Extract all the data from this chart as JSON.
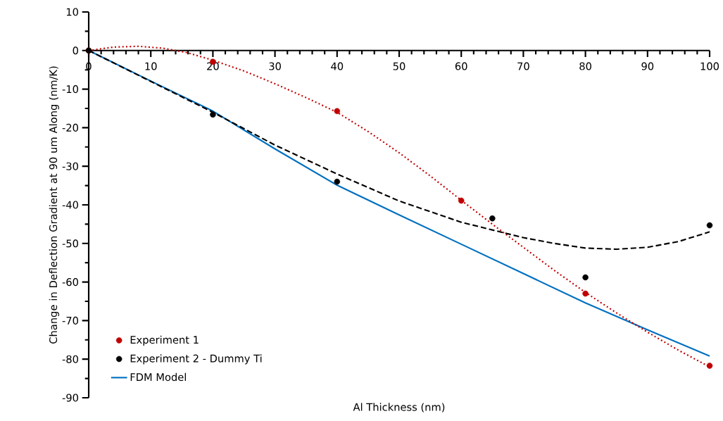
{
  "chart_data": {
    "type": "scatter",
    "xlabel": "Al Thickness (nm)",
    "ylabel": "Change in Deflection Gradient at 90 um Along (nm/K)",
    "xlim": [
      0,
      100
    ],
    "ylim": [
      -90,
      10
    ],
    "xticks": [
      0,
      10,
      20,
      30,
      40,
      50,
      60,
      70,
      80,
      90,
      100
    ],
    "yticks": [
      -90,
      -80,
      -70,
      -60,
      -50,
      -40,
      -30,
      -20,
      -10,
      0,
      10
    ],
    "grid": false,
    "legend": "bottom left",
    "series": [
      {
        "name": "Experiment 1",
        "type": "scatter",
        "marker": "circle",
        "color": "#c00000",
        "x": [
          0,
          20,
          40,
          60,
          80,
          100
        ],
        "values": [
          0,
          -2.9,
          -15.7,
          -38.9,
          -63,
          -81.7
        ]
      },
      {
        "name": "Experiment 2 - Dummy Ti",
        "type": "scatter",
        "marker": "circle",
        "color": "#000000",
        "x": [
          0,
          20,
          40,
          65,
          80,
          100
        ],
        "values": [
          0,
          -16.6,
          -34,
          -43.5,
          -58.8,
          -45.3
        ]
      },
      {
        "name": "FDM Model",
        "type": "line",
        "marker": "none",
        "line_style": "solid",
        "color": "#0070c0",
        "x": [
          0,
          10,
          20,
          30,
          40,
          50,
          60,
          70,
          80,
          90,
          100
        ],
        "values": [
          0,
          -7.9,
          -15.7,
          -25.5,
          -34.9,
          -42.6,
          -50.2,
          -57.8,
          -65.4,
          -72.4,
          -79.2
        ]
      },
      {
        "type": "line",
        "marker": "none",
        "line_style": "dotted",
        "color": "#c00000",
        "x": [
          0,
          4,
          8,
          12,
          16,
          20,
          25,
          30,
          35,
          40,
          45,
          50,
          55,
          60,
          65,
          70,
          75,
          80,
          85,
          90,
          95,
          100
        ],
        "values": [
          0,
          0.9,
          1.1,
          0.6,
          -0.6,
          -2.5,
          -5.3,
          -8.6,
          -12.2,
          -16,
          -21,
          -26.5,
          -32.5,
          -38.8,
          -45,
          -51,
          -57,
          -62.7,
          -68,
          -73,
          -77.7,
          -82
        ]
      },
      {
        "type": "line",
        "marker": "none",
        "line_style": "dashed",
        "color": "#000000",
        "x": [
          0,
          10,
          20,
          30,
          40,
          50,
          60,
          70,
          75,
          80,
          85,
          90,
          95,
          100
        ],
        "values": [
          0,
          -8,
          -16,
          -24.5,
          -32,
          -39,
          -44.5,
          -48.5,
          -50,
          -51.2,
          -51.5,
          -51,
          -49.5,
          -47
        ]
      }
    ]
  }
}
